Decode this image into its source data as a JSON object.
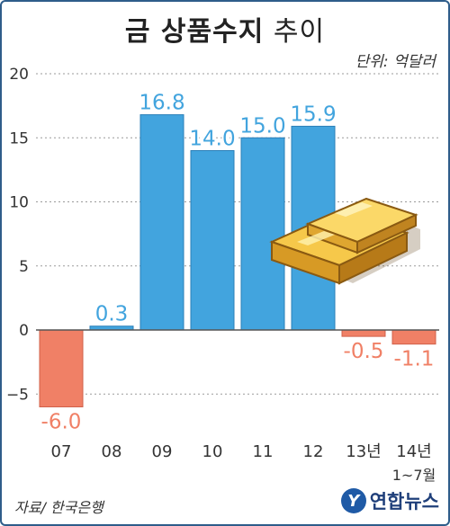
{
  "title_bold": "금 상품수지",
  "title_light": "추이",
  "unit": "단위: 억달러",
  "source": "자료/ 한국은행",
  "logo": {
    "mark": "Y",
    "text": "연합뉴스"
  },
  "colors": {
    "positive": "#42a4de",
    "negative": "#f08066",
    "grid": "#9a9a9a",
    "axis": "#555555"
  },
  "chart_data": {
    "type": "bar",
    "categories": [
      "07",
      "08",
      "09",
      "10",
      "11",
      "12",
      "13년",
      "14년"
    ],
    "category_sublabels": [
      "",
      "",
      "",
      "",
      "",
      "",
      "",
      "1~7월"
    ],
    "values": [
      -6.0,
      0.3,
      16.8,
      14.0,
      15.0,
      15.9,
      -0.5,
      -1.1
    ],
    "value_labels": [
      "-6.0",
      "0.3",
      "16.8",
      "14.0",
      "15.0",
      "15.9",
      "-0.5",
      "-1.1"
    ],
    "ylim": [
      -8,
      20
    ],
    "yticks": [
      20,
      15,
      10,
      5,
      0,
      -5
    ],
    "ytick_labels": [
      "20",
      "15",
      "10",
      "5",
      "0",
      "−5"
    ],
    "grid": true
  }
}
